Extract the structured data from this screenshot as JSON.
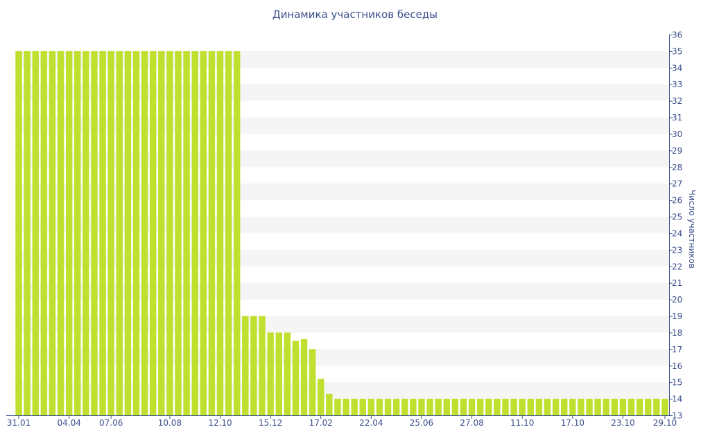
{
  "chart_data": {
    "type": "bar",
    "title": "Динамика участников беседы",
    "xlabel": "",
    "ylabel": "Число участников",
    "ylim": [
      13,
      36
    ],
    "y_axis_side": "right",
    "y_ticks": [
      13,
      14,
      15,
      16,
      17,
      18,
      19,
      20,
      21,
      22,
      23,
      24,
      25,
      26,
      27,
      28,
      29,
      30,
      31,
      32,
      33,
      34,
      35,
      36
    ],
    "x_tick_labels": [
      {
        "label": "31.01",
        "index": 0
      },
      {
        "label": "04.04",
        "index": 6
      },
      {
        "label": "07.06",
        "index": 11
      },
      {
        "label": "10.08",
        "index": 18
      },
      {
        "label": "12.10",
        "index": 24
      },
      {
        "label": "15.12",
        "index": 30
      },
      {
        "label": "17.02",
        "index": 36
      },
      {
        "label": "22.04",
        "index": 42
      },
      {
        "label": "25.06",
        "index": 48
      },
      {
        "label": "27.08",
        "index": 54
      },
      {
        "label": "11.10",
        "index": 60
      },
      {
        "label": "17.10",
        "index": 66
      },
      {
        "label": "23.10",
        "index": 72
      },
      {
        "label": "29.10",
        "index": 77
      }
    ],
    "values": [
      35,
      35,
      35,
      35,
      35,
      35,
      35,
      35,
      35,
      35,
      35,
      35,
      35,
      35,
      35,
      35,
      35,
      35,
      35,
      35,
      35,
      35,
      35,
      35,
      35,
      35,
      35,
      19,
      19,
      19,
      18,
      18,
      18,
      17.5,
      17.6,
      17,
      15.2,
      14.3,
      14,
      14,
      14,
      14,
      14,
      14,
      14,
      14,
      14,
      14,
      14,
      14,
      14,
      14,
      14,
      14,
      14,
      14,
      14,
      14,
      14,
      14,
      14,
      14,
      14,
      14,
      14,
      14,
      14,
      14,
      14,
      14,
      14,
      14,
      14,
      14,
      14,
      14,
      14,
      14
    ],
    "grid": "alternating horizontal bands",
    "colors": {
      "bar": "#bfe02e",
      "band": "#f5f5f5",
      "axis": "#3b4f8c",
      "text": "#3b4f8c"
    }
  }
}
